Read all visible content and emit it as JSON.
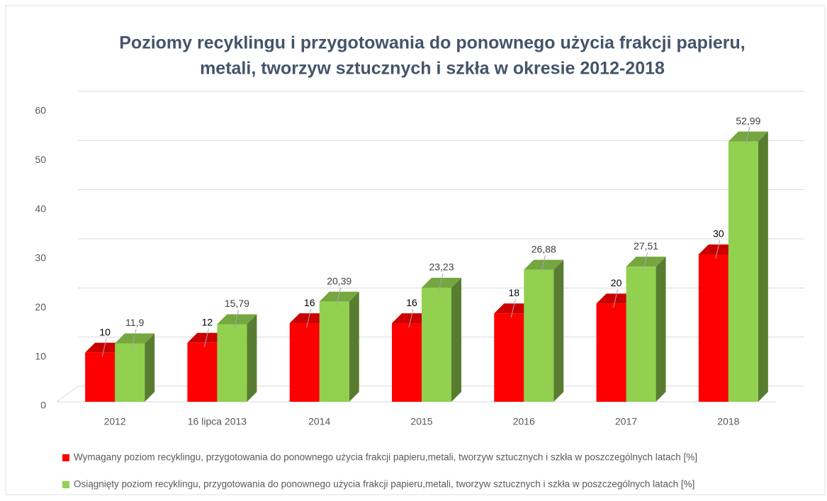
{
  "chart_data": {
    "type": "bar",
    "title": [
      "Poziomy recyklingu i przygotowania do ponownego użycia frakcji papieru,",
      "metali, tworzyw sztucznych i szkła w okresie 2012-2018"
    ],
    "categories": [
      "2012",
      "16 lipca 2013",
      "2014",
      "2015",
      "2016",
      "2017",
      "2018"
    ],
    "series": [
      {
        "name": "Wymagany poziom recyklingu, przygotowania do ponownego użycia frakcji papieru,metali, tworzyw sztucznych i szkła w poszczególnych latach [%]",
        "color": "#ff0000",
        "values": [
          10,
          12,
          16,
          16,
          18,
          20,
          30
        ]
      },
      {
        "name": "Osiągnięty poziom recyklingu, przygotowania do ponownego użycia frakcji papieru,metali, tworzyw sztucznych i szkła w poszczególnych latach [%]",
        "color": "#92d050",
        "values": [
          11.9,
          15.79,
          20.39,
          23.23,
          26.88,
          27.51,
          52.99
        ],
        "value_labels": [
          "11,9",
          "15,79",
          "20,39",
          "23,23",
          "26,88",
          "27,51",
          "52,99"
        ]
      }
    ],
    "ylim": [
      0,
      60
    ],
    "yticks": [
      0,
      10,
      20,
      30,
      40,
      50,
      60
    ],
    "grid": true
  }
}
